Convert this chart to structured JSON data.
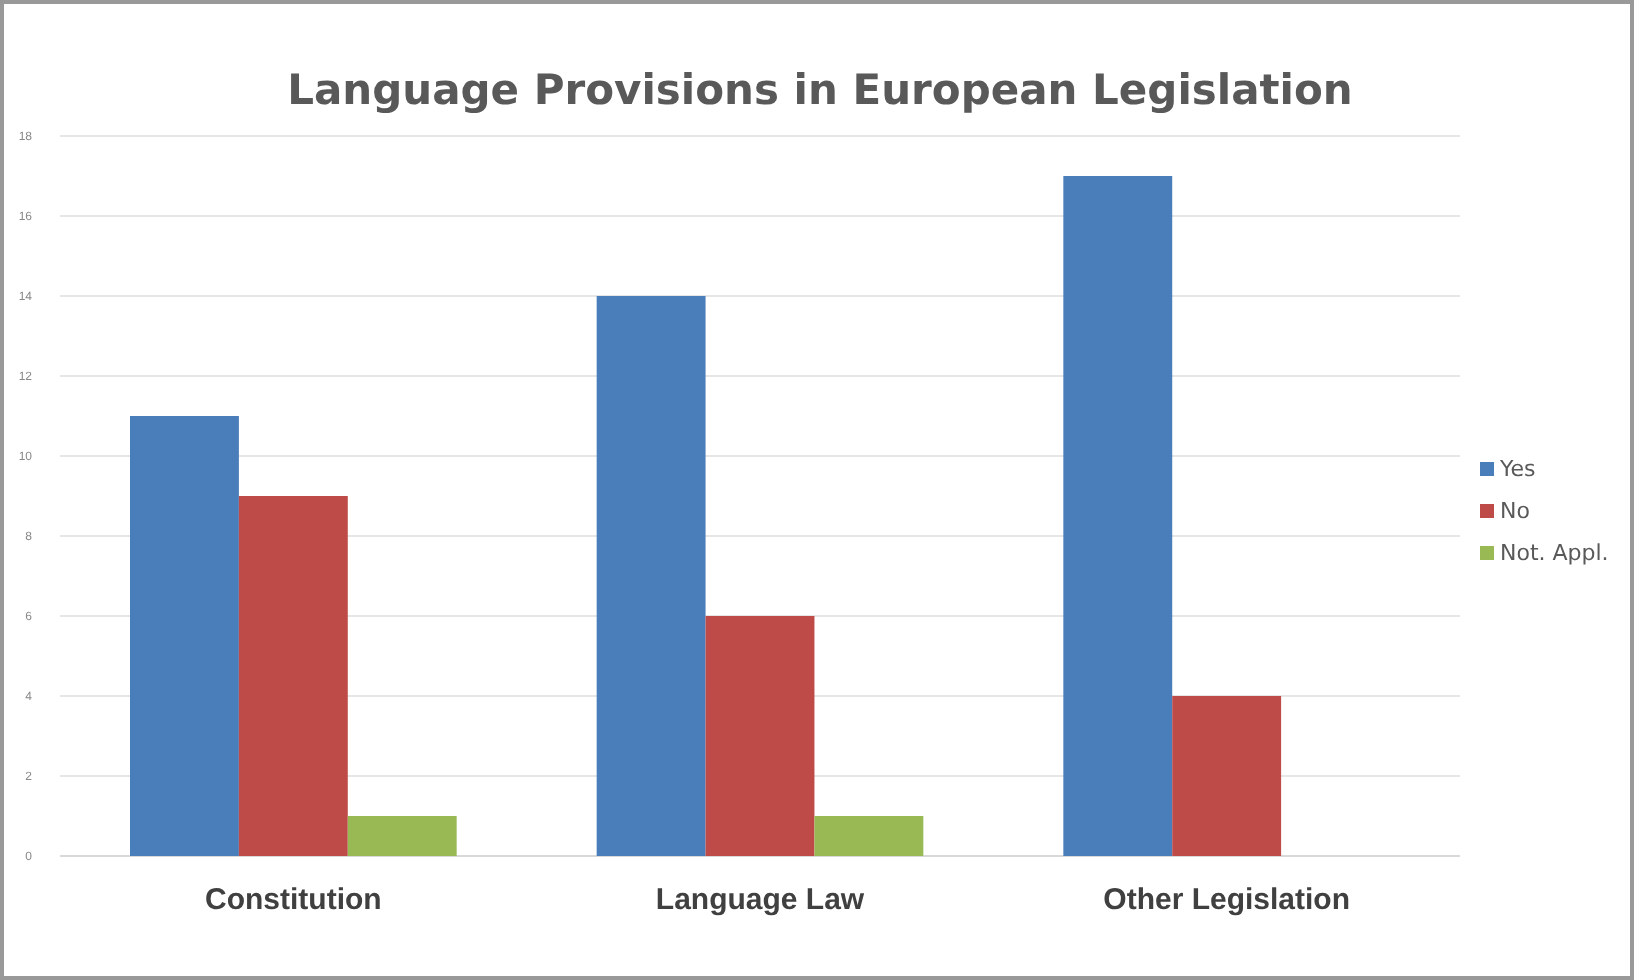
{
  "chart_data": {
    "type": "bar",
    "title": "Language Provisions in European Legislation",
    "categories": [
      "Constitution",
      "Language Law",
      "Other Legislation"
    ],
    "series": [
      {
        "name": "Yes",
        "color": "#4a7ebb",
        "values": [
          11,
          14,
          17
        ]
      },
      {
        "name": "No",
        "color": "#be4b48",
        "values": [
          9,
          6,
          4
        ]
      },
      {
        "name": "Not. Appl.",
        "color": "#98b954",
        "values": [
          1,
          1,
          0
        ]
      }
    ],
    "ylim": [
      0,
      18
    ],
    "yticks": [
      0,
      2,
      4,
      6,
      8,
      10,
      12,
      14,
      16,
      18
    ],
    "grid": "y",
    "legend": "right"
  }
}
